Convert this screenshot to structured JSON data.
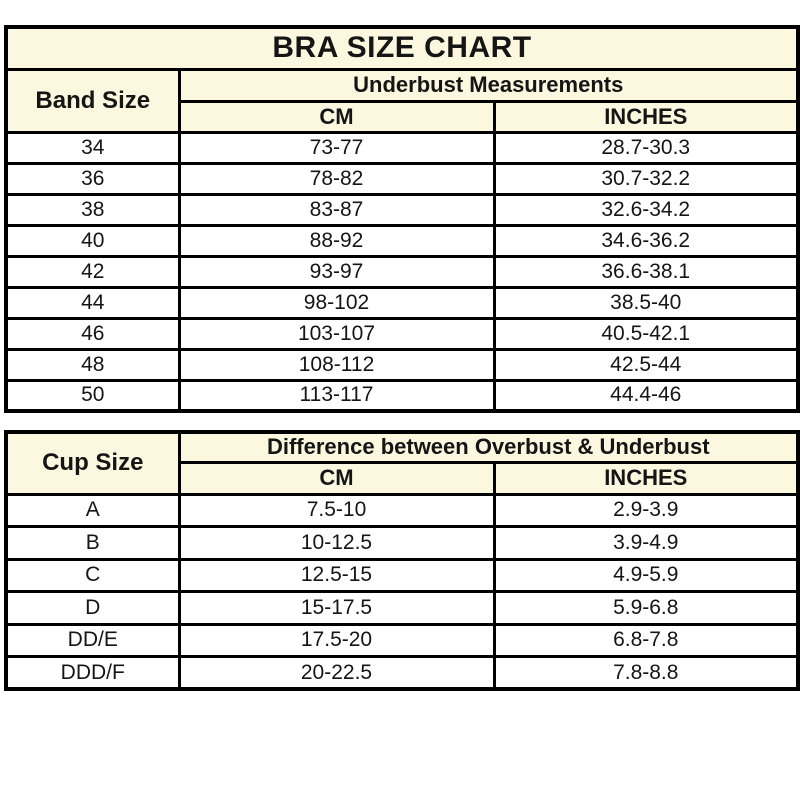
{
  "colors": {
    "header_bg": "#FCF7DF",
    "border": "#000000",
    "cell_bg": "#FFFFFF",
    "text": "#151515"
  },
  "chart_data": [
    {
      "type": "table",
      "title": "BRA SIZE CHART",
      "row_header": "Band Size",
      "group_header": "Underbust Measurements",
      "unit_headers": [
        "CM",
        "INCHES"
      ],
      "rows": [
        [
          "34",
          "73-77",
          "28.7-30.3"
        ],
        [
          "36",
          "78-82",
          "30.7-32.2"
        ],
        [
          "38",
          "83-87",
          "32.6-34.2"
        ],
        [
          "40",
          "88-92",
          "34.6-36.2"
        ],
        [
          "42",
          "93-97",
          "36.6-38.1"
        ],
        [
          "44",
          "98-102",
          "38.5-40"
        ],
        [
          "46",
          "103-107",
          "40.5-42.1"
        ],
        [
          "48",
          "108-112",
          "42.5-44"
        ],
        [
          "50",
          "113-117",
          "44.4-46"
        ]
      ]
    },
    {
      "type": "table",
      "row_header": "Cup Size",
      "group_header": "Difference between Overbust & Underbust",
      "unit_headers": [
        "CM",
        "INCHES"
      ],
      "rows": [
        [
          "A",
          "7.5-10",
          "2.9-3.9"
        ],
        [
          "B",
          "10-12.5",
          "3.9-4.9"
        ],
        [
          "C",
          "12.5-15",
          "4.9-5.9"
        ],
        [
          "D",
          "15-17.5",
          "5.9-6.8"
        ],
        [
          "DD/E",
          "17.5-20",
          "6.8-7.8"
        ],
        [
          "DDD/F",
          "20-22.5",
          "7.8-8.8"
        ]
      ]
    }
  ]
}
